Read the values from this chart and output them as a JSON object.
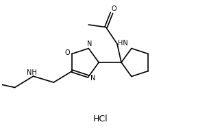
{
  "background_color": "#ffffff",
  "line_color": "#000000",
  "text_color": "#000000",
  "hcl_label": "HCl",
  "fig_width": 3.05,
  "fig_height": 1.91,
  "dpi": 100,
  "lw": 1.2,
  "fs": 7.0,
  "xlim": [
    0,
    10
  ],
  "ylim": [
    0,
    6.3
  ]
}
